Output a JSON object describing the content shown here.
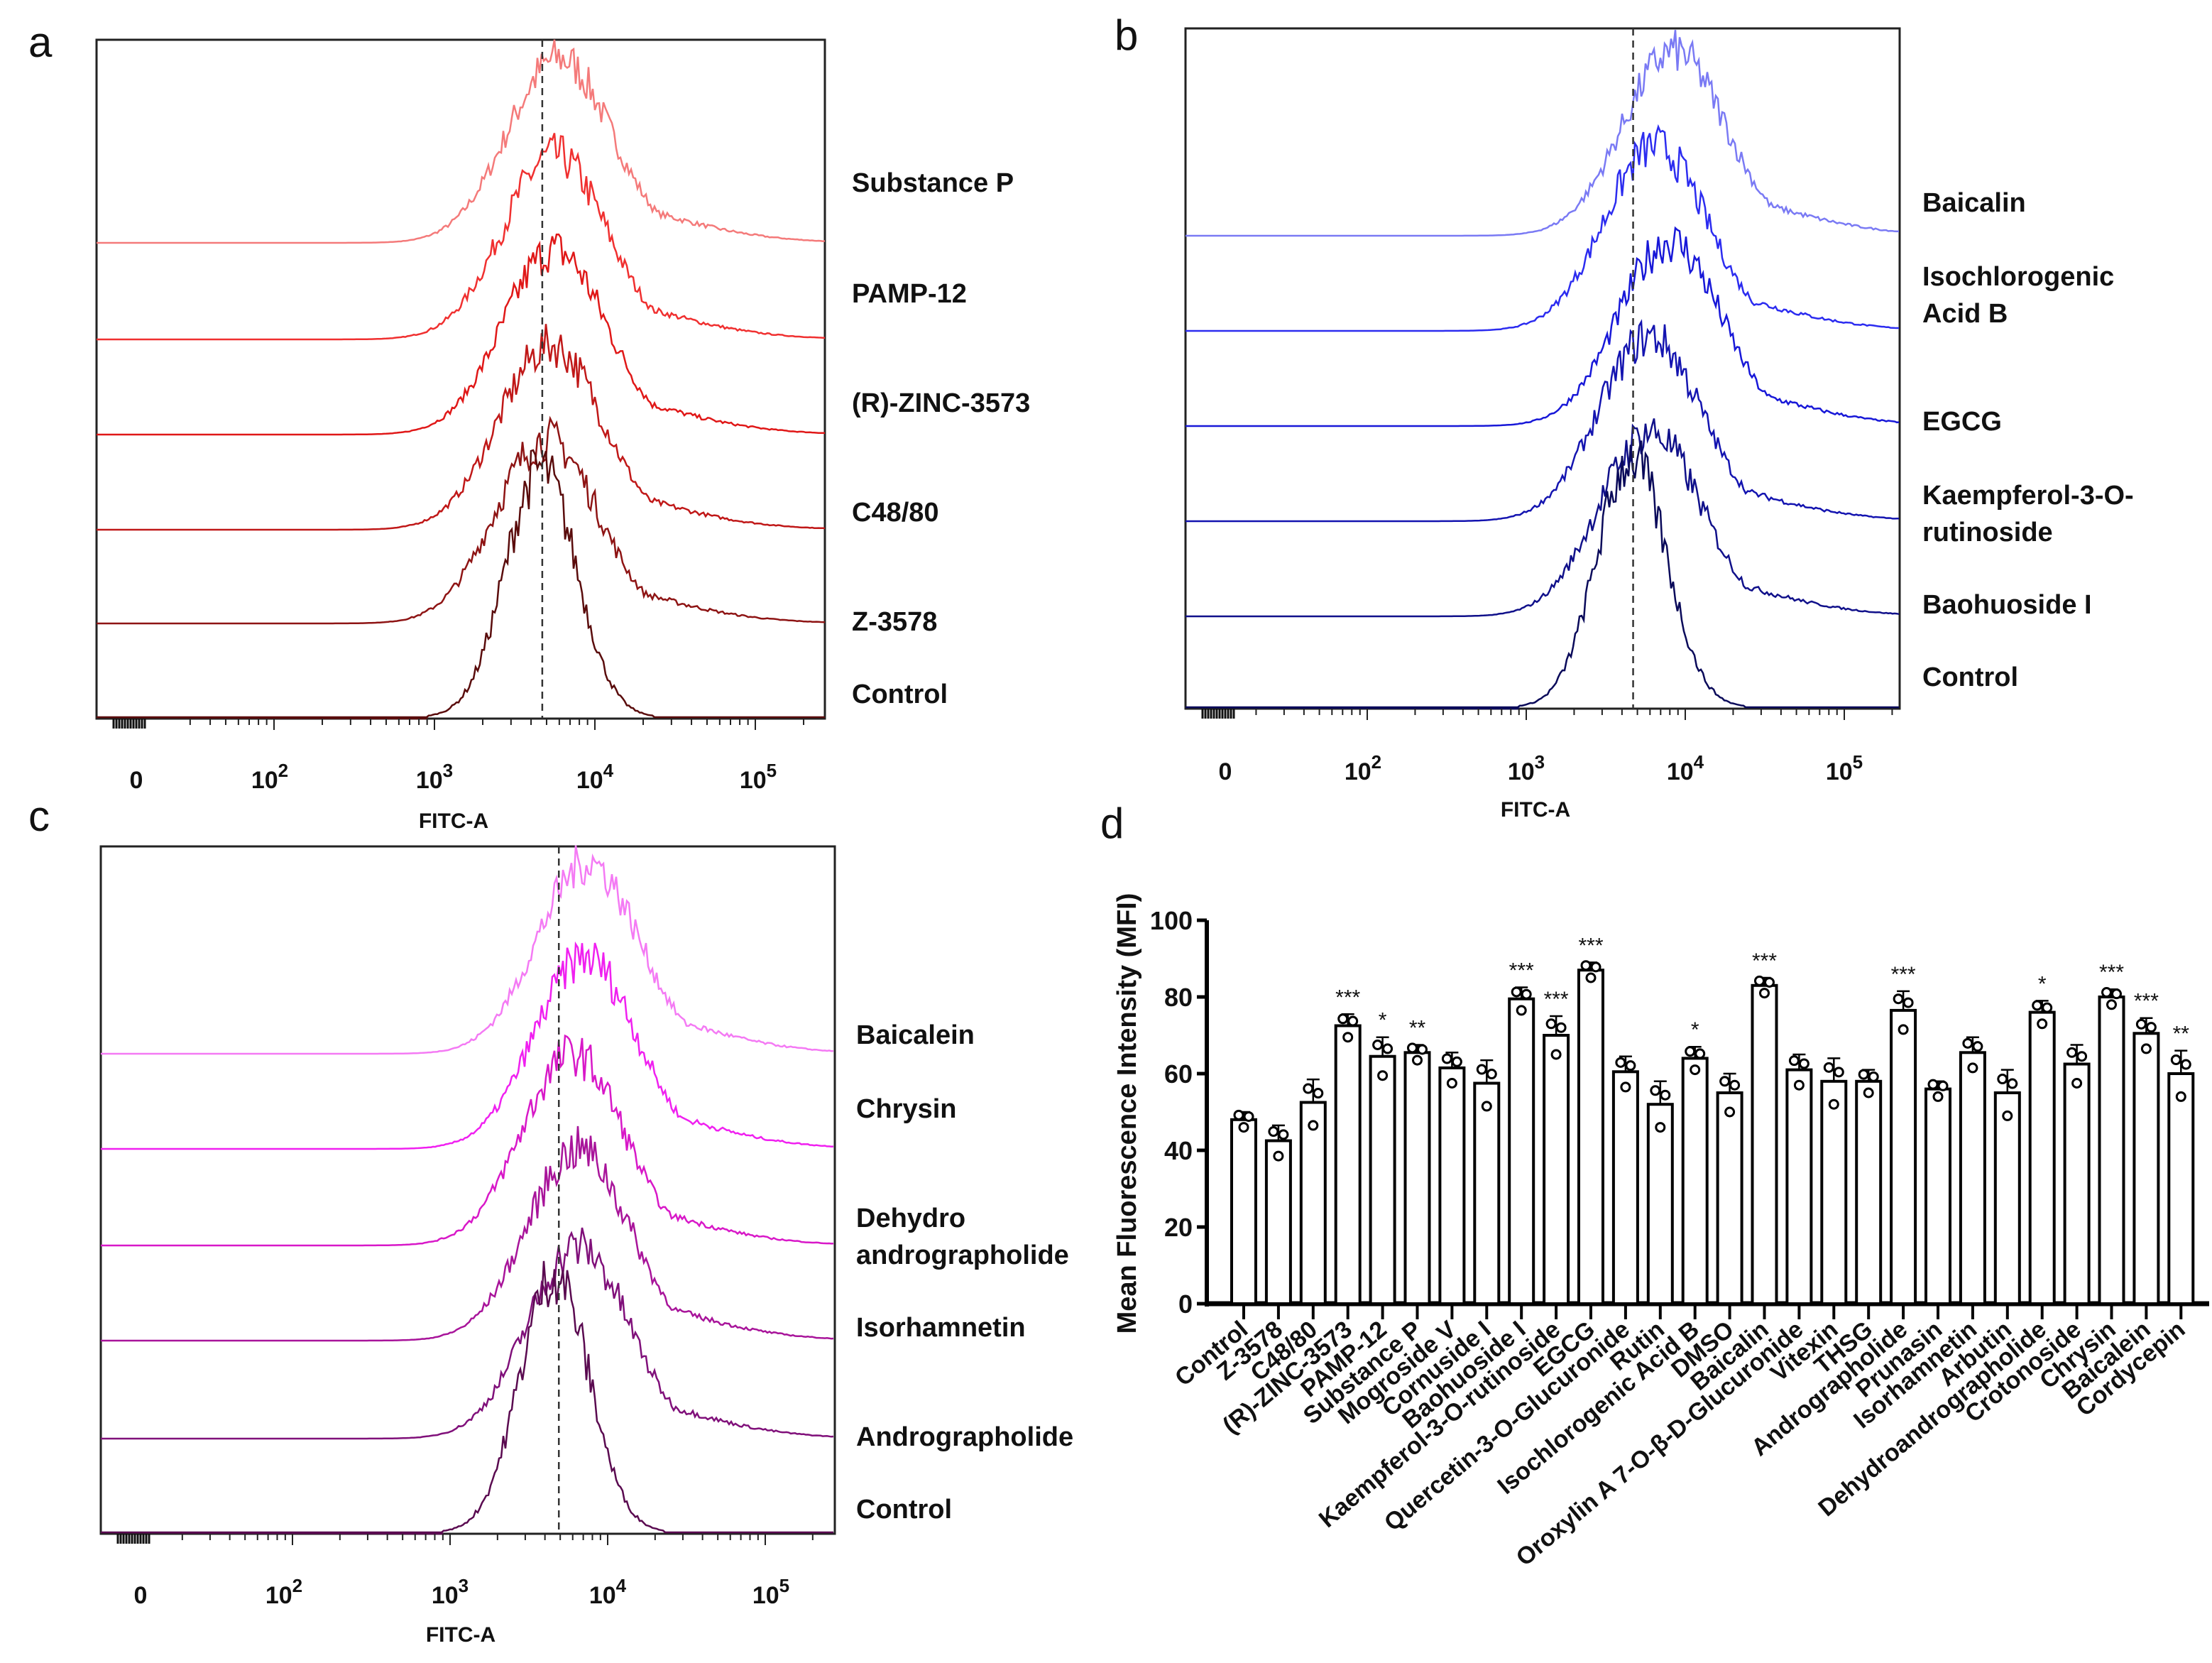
{
  "panels": {
    "a": "a",
    "b": "b",
    "c": "c",
    "d": "d"
  },
  "chart_data": [
    {
      "type": "area",
      "panel": "a",
      "xlabel": "FITC-A",
      "x_scale": "log",
      "x_ticks": [
        "0",
        "10^2",
        "10^3",
        "10^4",
        "10^5"
      ],
      "series": [
        {
          "name": "Substance P",
          "peak_fitc": 6000,
          "color": "#f47a7a"
        },
        {
          "name": "PAMP-12",
          "peak_fitc": 5600,
          "color": "#f03030"
        },
        {
          "name": "(R)-ZINC-3573",
          "peak_fitc": 5600,
          "color": "#e01818"
        },
        {
          "name": "C48/80",
          "peak_fitc": 5300,
          "color": "#c01818"
        },
        {
          "name": "Z-3578",
          "peak_fitc": 5000,
          "color": "#8e1414"
        },
        {
          "name": "Control",
          "peak_fitc": 4600,
          "color": "#5a0c0c"
        }
      ],
      "reference_line_fitc": 4700
    },
    {
      "type": "area",
      "panel": "b",
      "xlabel": "FITC-A",
      "x_scale": "log",
      "x_ticks": [
        "0",
        "10^2",
        "10^3",
        "10^4",
        "10^5"
      ],
      "series": [
        {
          "name": "Baicalin",
          "peak_fitc": 8500,
          "color": "#7a7af4"
        },
        {
          "name": "Isochlorogenic Acid B",
          "label_lines": [
            "Isochlorogenic",
            " Acid B"
          ],
          "peak_fitc": 6500,
          "color": "#2c2cf0"
        },
        {
          "name": "EGCG",
          "peak_fitc": 8000,
          "color": "#1818d8"
        },
        {
          "name": "Kaempferol-3-O-rutinoside",
          "label_lines": [
            "Kaempferol-3-O-",
            "rutinoside"
          ],
          "peak_fitc": 6000,
          "color": "#1414b0"
        },
        {
          "name": "Baohuoside I",
          "peak_fitc": 6000,
          "color": "#10108a"
        },
        {
          "name": "Control",
          "peak_fitc": 4600,
          "color": "#0a0a5a"
        }
      ],
      "reference_line_fitc": 4700
    },
    {
      "type": "area",
      "panel": "c",
      "xlabel": "FITC-A",
      "x_scale": "log",
      "x_ticks": [
        "0",
        "10^2",
        "10^3",
        "10^4",
        "10^5"
      ],
      "series": [
        {
          "name": "Baicalein",
          "peak_fitc": 7500,
          "color": "#f47af4"
        },
        {
          "name": "Chrysin",
          "peak_fitc": 7200,
          "color": "#f020f0"
        },
        {
          "name": "Dehydro andrographolide",
          "label_lines": [
            "Dehydro",
            "andrographolide"
          ],
          "peak_fitc": 6000,
          "color": "#d818c8"
        },
        {
          "name": "Isorhamnetin",
          "peak_fitc": 6500,
          "color": "#a8149a"
        },
        {
          "name": "Andrographolide",
          "peak_fitc": 6500,
          "color": "#80107a"
        },
        {
          "name": "Control",
          "peak_fitc": 4600,
          "color": "#5a0a50"
        }
      ],
      "reference_line_fitc": 4900
    },
    {
      "type": "bar",
      "panel": "d",
      "title": "",
      "xlabel": "",
      "ylabel": "Mean Fluorescence Intensity (MFI)",
      "ylim": [
        0,
        100
      ],
      "y_ticks": [
        "0",
        "20",
        "40",
        "60",
        "80",
        "100"
      ],
      "categories": [
        "Control",
        "Z-3578",
        "C48/80",
        "(R)-ZINC-3573",
        "PAMP-12",
        "Substance P",
        "Mogroside V",
        "Cornuside I",
        "Baohuoside I",
        "Kaempferol-3-O-rutinoside",
        "EGCG",
        "Quercetin-3-O-Glucuronide",
        "Rutin",
        "Isochlorogenic Acid B",
        "DMSO",
        "Baicalin",
        "Oroxylin A 7-O-β-D-Glucuronide",
        "Vitexin",
        "THSG",
        "Andrographolide",
        "Prunasin",
        "Isorhamnetin",
        "Arbutin",
        "Dehydroandrographolide",
        "Crotonoside",
        "Chrysin",
        "Baicalein",
        "Cordycepin"
      ],
      "values": [
        48,
        42.5,
        52.5,
        72.5,
        64.5,
        65.5,
        61.5,
        57.5,
        79.5,
        70,
        87,
        60.5,
        52,
        64,
        55,
        83,
        61,
        58,
        58,
        76.5,
        56,
        65.5,
        55,
        76,
        62.5,
        80,
        70.5,
        60
      ],
      "significance": [
        "",
        "",
        "",
        "***",
        "*",
        "**",
        "",
        "",
        "***",
        "***",
        "***",
        "",
        "",
        "*",
        "",
        "***",
        "",
        "",
        "",
        "***",
        "",
        "",
        "",
        "*",
        "",
        "***",
        "***",
        "**"
      ]
    }
  ]
}
